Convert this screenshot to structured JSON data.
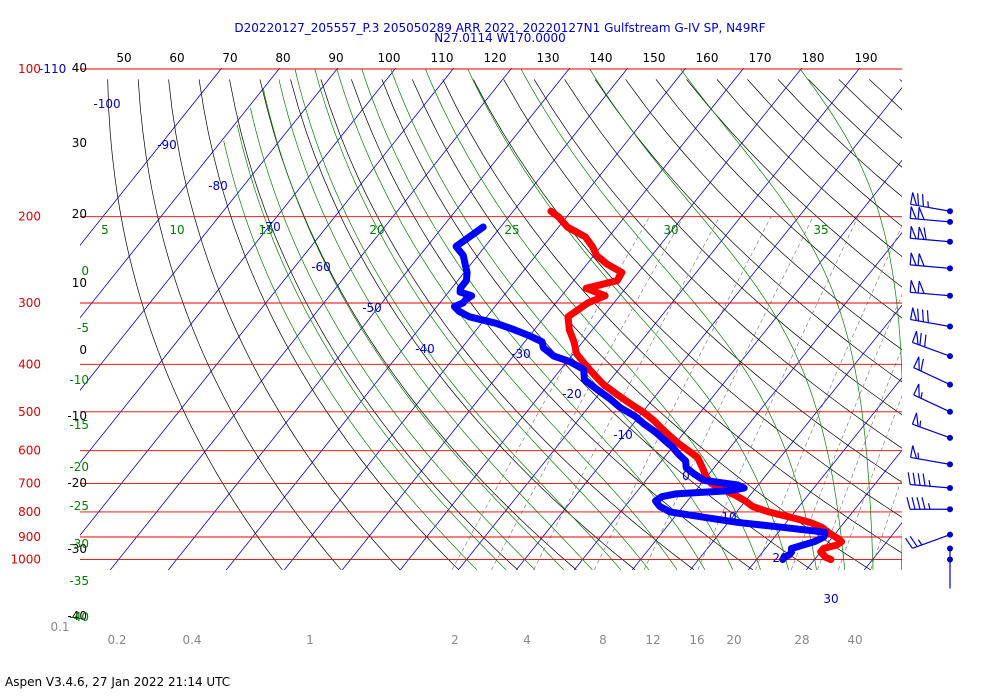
{
  "header": {
    "title_line1": "D20220127_205557_P.3 205050289 ARR 2022, 20220127N1 Gulfstream G-IV SP, N49RF",
    "title_line2": "N27.0114 W170.0000"
  },
  "footer": {
    "version_text": "Aspen V3.4.6, 27 Jan 2022  21:14 UTC"
  },
  "colors": {
    "isobar": "#e00000",
    "isotherm": "#0000cc",
    "dry_adiabat": "#000000",
    "moist_adiabat": "#008000",
    "mixing_ratio": "#808080",
    "temperature": "#ff0000",
    "dewpoint": "#0000ff",
    "wind": "#0000cc"
  },
  "chart_data": {
    "type": "skew-t",
    "title": "D20220127_205557_P.3 205050289 ARR 2022, 20220127N1 Gulfstream G-IV SP, N49RF",
    "pressure_levels_hpa": [
      "100-110",
      "200",
      "300",
      "400",
      "500",
      "600",
      "700",
      "800",
      "900",
      "1000"
    ],
    "pressure_level_values": [
      100,
      200,
      300,
      400,
      500,
      600,
      700,
      800,
      900,
      1000
    ],
    "top_axis_ticks": [
      "50",
      "60",
      "70",
      "80",
      "90",
      "100",
      "110",
      "120",
      "130",
      "140",
      "150",
      "160",
      "170",
      "180",
      "190"
    ],
    "left_axis_ticks": [
      "40",
      "30",
      "20",
      "10",
      "0",
      "-10",
      "-20",
      "-30",
      "-40"
    ],
    "isotherm_labels": [
      "-100",
      "-90",
      "-80",
      "-70",
      "-60",
      "-50",
      "-40",
      "-30",
      "-20",
      "-10",
      "0",
      "10",
      "20",
      "30"
    ],
    "moist_adiabat_labels_top": [
      "5",
      "10",
      "15",
      "20",
      "25",
      "30",
      "35"
    ],
    "moist_adiabat_labels_left": [
      "0",
      "-5",
      "-10",
      "-15",
      "-20",
      "-25",
      "-30",
      "-35",
      "-40"
    ],
    "mixing_ratio_labels": [
      "0.1",
      "0.2",
      "0.4",
      "1",
      "2",
      "4",
      "8",
      "12",
      "16",
      "20",
      "28",
      "40"
    ],
    "temperature_profile": {
      "name": "Temperature",
      "pressure_hpa": [
        1000,
        990,
        980,
        965,
        950,
        935,
        920,
        905,
        885,
        860,
        840,
        820,
        800,
        780,
        760,
        740,
        720,
        700,
        680,
        650,
        620,
        600,
        580,
        560,
        540,
        520,
        500,
        480,
        460,
        440,
        420,
        400,
        380,
        360,
        340,
        320,
        300,
        290,
        280,
        270,
        260,
        250,
        240,
        230,
        220,
        210,
        200,
        195
      ],
      "temp_c": [
        22.8,
        21.6,
        21.0,
        20.0,
        20.0,
        21.8,
        22.2,
        21.0,
        19.0,
        16.8,
        14.0,
        10.0,
        5.5,
        2.0,
        0.0,
        -2.5,
        -5.5,
        -8.3,
        -10.0,
        -12.0,
        -14.2,
        -16.8,
        -19.5,
        -22.0,
        -24.5,
        -27.0,
        -30.0,
        -33.5,
        -37.0,
        -40.5,
        -43.5,
        -46.5,
        -49.5,
        -51.5,
        -54.0,
        -56.0,
        -54.5,
        -52.5,
        -56.8,
        -52.5,
        -52.8,
        -56.5,
        -59.5,
        -61.5,
        -64.0,
        -68.5,
        -71.5,
        -73.5
      ]
    },
    "dewpoint_profile": {
      "name": "Dewpoint",
      "pressure_hpa": [
        1000,
        990,
        980,
        965,
        950,
        920,
        900,
        880,
        860,
        840,
        820,
        800,
        780,
        760,
        745,
        735,
        725,
        720,
        715,
        705,
        690,
        670,
        650,
        630,
        610,
        590,
        570,
        550,
        530,
        510,
        490,
        470,
        450,
        430,
        410,
        395,
        385,
        370,
        360,
        350,
        340,
        330,
        320,
        312,
        305,
        300,
        295,
        290,
        285,
        280,
        270,
        260,
        250,
        240,
        230,
        220,
        210
      ],
      "dewpoint_c": [
        14.5,
        14.5,
        15.0,
        15.0,
        14.5,
        17.5,
        18.5,
        18.0,
        10.0,
        1.5,
        -5.0,
        -11.5,
        -14.0,
        -15.5,
        -15.0,
        -13.0,
        -5.0,
        -3.0,
        -2.0,
        -3.5,
        -10.0,
        -12.5,
        -14.8,
        -15.8,
        -18.0,
        -20.0,
        -22.5,
        -25.0,
        -28.0,
        -30.8,
        -34.5,
        -37.5,
        -41.0,
        -44.5,
        -46.0,
        -49.5,
        -53.0,
        -56.0,
        -57.0,
        -60.0,
        -63.5,
        -67.5,
        -73.0,
        -75.5,
        -77.0,
        -76.0,
        -76.0,
        -75.5,
        -78.0,
        -78.5,
        -78.5,
        -79.5,
        -81.0,
        -82.5,
        -85.0,
        -84.0,
        -83.0
      ]
    },
    "wind_barbs": [
      {
        "pressure_hpa": 195,
        "speed_kt": 75,
        "dir_deg": 280
      },
      {
        "pressure_hpa": 205,
        "speed_kt": 100,
        "dir_deg": 275
      },
      {
        "pressure_hpa": 225,
        "speed_kt": 110,
        "dir_deg": 275
      },
      {
        "pressure_hpa": 255,
        "speed_kt": 100,
        "dir_deg": 275
      },
      {
        "pressure_hpa": 290,
        "speed_kt": 100,
        "dir_deg": 275
      },
      {
        "pressure_hpa": 335,
        "speed_kt": 80,
        "dir_deg": 280
      },
      {
        "pressure_hpa": 385,
        "speed_kt": 70,
        "dir_deg": 290
      },
      {
        "pressure_hpa": 440,
        "speed_kt": 60,
        "dir_deg": 295
      },
      {
        "pressure_hpa": 500,
        "speed_kt": 55,
        "dir_deg": 295
      },
      {
        "pressure_hpa": 565,
        "speed_kt": 55,
        "dir_deg": 290
      },
      {
        "pressure_hpa": 640,
        "speed_kt": 55,
        "dir_deg": 280
      },
      {
        "pressure_hpa": 715,
        "speed_kt": 45,
        "dir_deg": 275
      },
      {
        "pressure_hpa": 790,
        "speed_kt": 45,
        "dir_deg": 270
      },
      {
        "pressure_hpa": 890,
        "speed_kt": 25,
        "dir_deg": 250
      },
      {
        "pressure_hpa": 950,
        "speed_kt": 2,
        "dir_deg": 180
      },
      {
        "pressure_hpa": 1000,
        "speed_kt": 0,
        "dir_deg": 0
      }
    ]
  }
}
